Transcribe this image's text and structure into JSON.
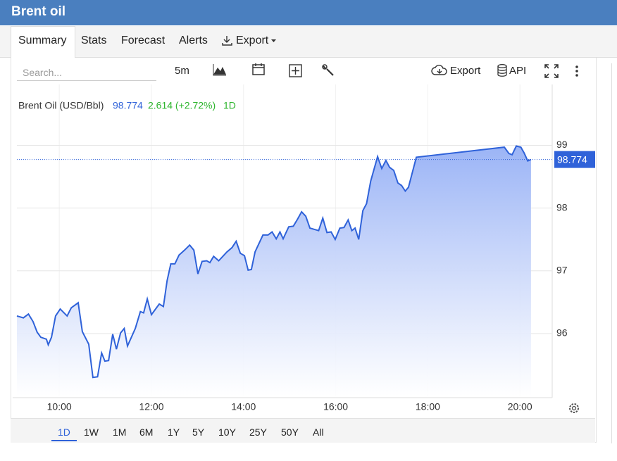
{
  "header": {
    "title": "Brent oil"
  },
  "tabs": [
    "Summary",
    "Stats",
    "Forecast",
    "Alerts",
    "Export"
  ],
  "toolbar": {
    "search_placeholder": "Search...",
    "interval": "5m",
    "export": "Export",
    "api": "API"
  },
  "ranges": [
    "1D",
    "1W",
    "1M",
    "6M",
    "1Y",
    "5Y",
    "10Y",
    "25Y",
    "50Y",
    "All"
  ],
  "chart_data": {
    "type": "area",
    "x": [
      9.08,
      9.22,
      9.33,
      9.43,
      9.52,
      9.6,
      9.72,
      9.76,
      9.83,
      9.92,
      10.02,
      10.17,
      10.26,
      10.41,
      10.5,
      10.64,
      10.73,
      10.83,
      10.92,
      10.99,
      11.07,
      11.16,
      11.24,
      11.33,
      11.41,
      11.48,
      11.65,
      11.76,
      11.83,
      11.91,
      12.0,
      12.17,
      12.26,
      12.34,
      12.42,
      12.51,
      12.6,
      12.72,
      12.83,
      12.92,
      13.01,
      13.1,
      13.2,
      13.27,
      13.35,
      13.46,
      13.55,
      13.64,
      13.75,
      13.84,
      13.93,
      14.02,
      14.1,
      14.17,
      14.25,
      14.42,
      14.53,
      14.62,
      14.71,
      14.79,
      14.86,
      14.98,
      15.08,
      15.17,
      15.26,
      15.35,
      15.44,
      15.63,
      15.72,
      15.81,
      15.9,
      15.99,
      16.09,
      16.18,
      16.27,
      16.35,
      16.42,
      16.5,
      16.59,
      16.67,
      16.76,
      16.91,
      17.0,
      17.09,
      17.17,
      17.26,
      17.35,
      17.43,
      17.51,
      17.58,
      17.75,
      19.66,
      19.76,
      19.83,
      19.92,
      20.02,
      20.09,
      20.17,
      20.24
    ],
    "series": [
      {
        "name": "Brent Oil (USD/Bbl)",
        "color": "#2f62d9",
        "values": [
          96.28,
          96.25,
          96.31,
          96.19,
          96.02,
          95.94,
          95.91,
          95.82,
          95.94,
          96.28,
          96.39,
          96.28,
          96.41,
          96.49,
          96.03,
          95.83,
          95.3,
          95.31,
          95.69,
          95.56,
          95.57,
          95.99,
          95.75,
          96.01,
          96.08,
          95.8,
          96.08,
          96.35,
          96.33,
          96.55,
          96.3,
          96.47,
          96.43,
          96.84,
          97.11,
          97.11,
          97.25,
          97.33,
          97.41,
          97.33,
          96.95,
          97.15,
          97.16,
          97.13,
          97.23,
          97.16,
          97.23,
          97.3,
          97.37,
          97.47,
          97.28,
          97.24,
          97.01,
          97.02,
          97.3,
          97.57,
          97.57,
          97.62,
          97.51,
          97.62,
          97.51,
          97.7,
          97.71,
          97.82,
          97.94,
          97.87,
          97.68,
          97.64,
          97.84,
          97.61,
          97.62,
          97.5,
          97.68,
          97.69,
          97.81,
          97.64,
          97.68,
          97.5,
          97.96,
          98.07,
          98.43,
          98.82,
          98.63,
          98.76,
          98.65,
          98.6,
          98.4,
          98.36,
          98.27,
          98.33,
          98.81,
          98.97,
          98.87,
          98.85,
          98.99,
          98.97,
          98.88,
          98.75,
          98.774
        ]
      }
    ],
    "last_value": 98.774,
    "change_label": "2.614 (+2.72%)",
    "period": "1D",
    "xlim": [
      9.08,
      20.7
    ],
    "ylim": [
      95.0,
      99.97
    ],
    "xticks": [
      {
        "value": 10,
        "label": "10:00"
      },
      {
        "value": 12,
        "label": "12:00"
      },
      {
        "value": 14,
        "label": "14:00"
      },
      {
        "value": 16,
        "label": "16:00"
      },
      {
        "value": 18,
        "label": "18:00"
      },
      {
        "value": 20,
        "label": "20:00"
      }
    ],
    "yticks": [
      96,
      97,
      98,
      99
    ],
    "grid": true
  }
}
